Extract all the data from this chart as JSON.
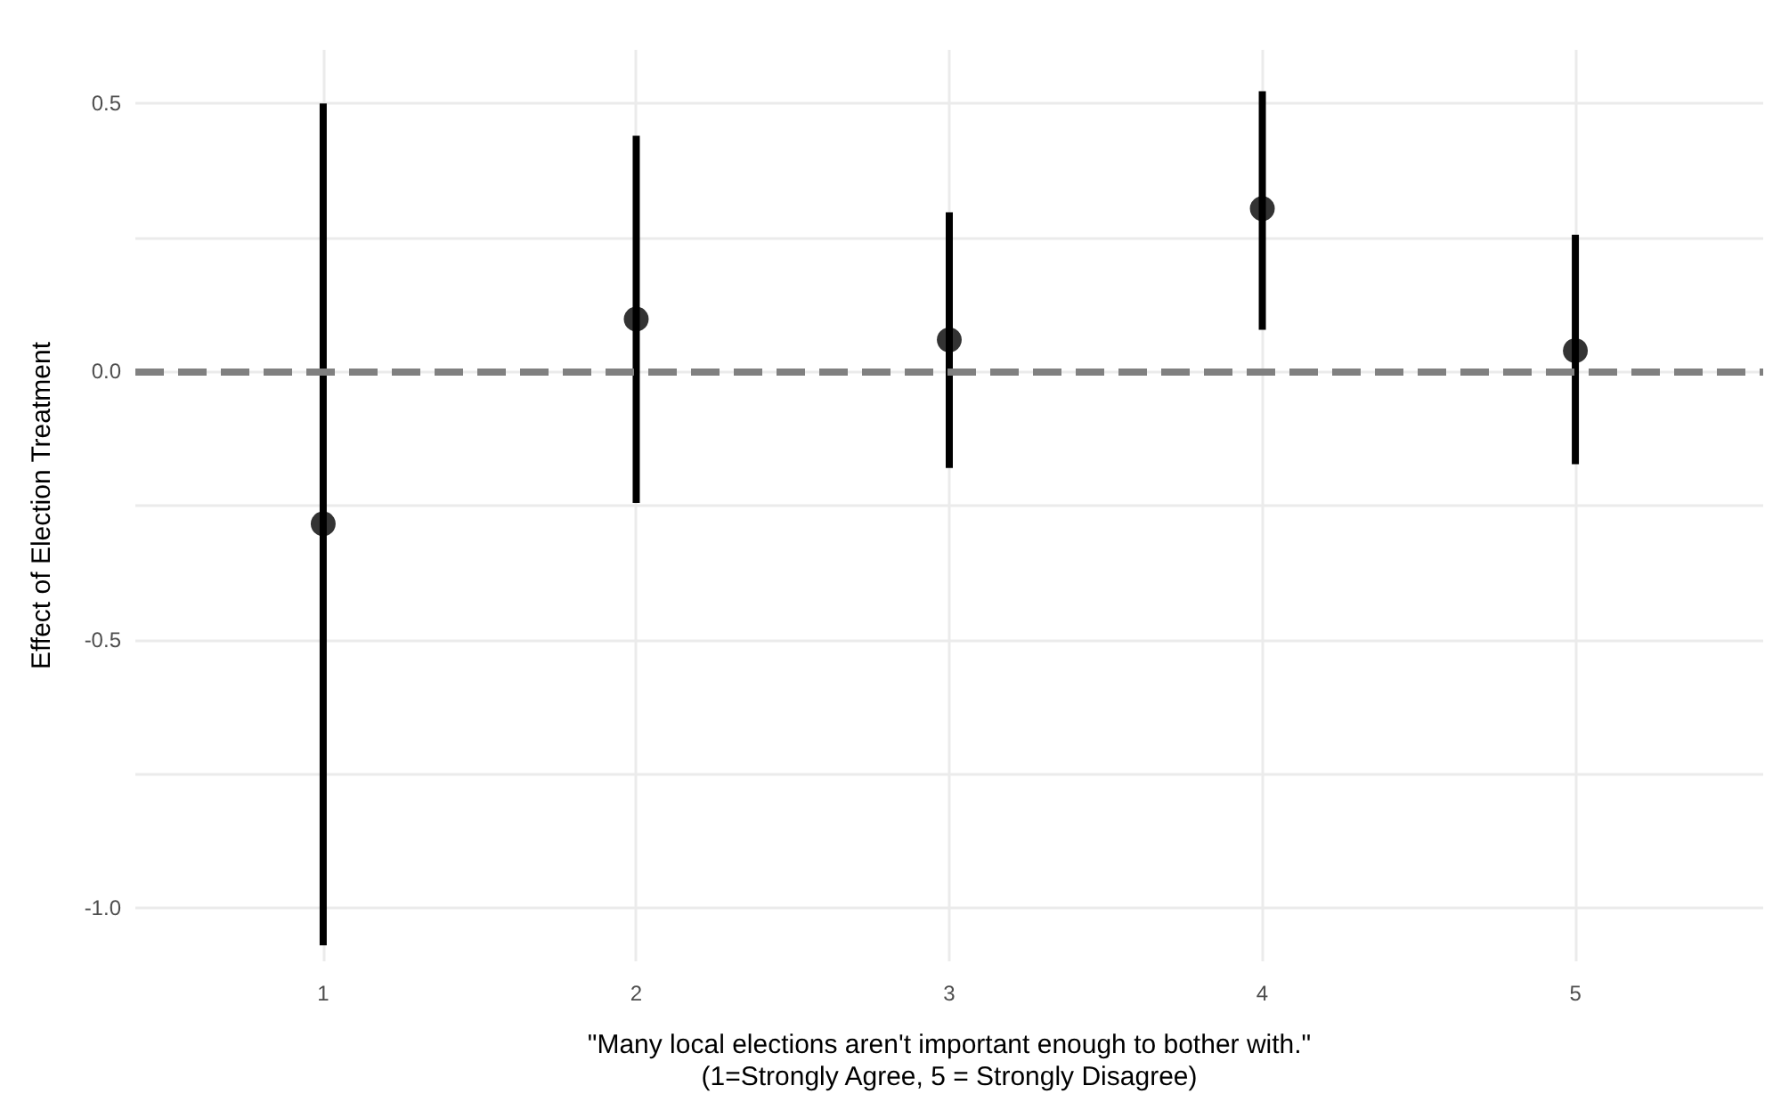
{
  "chart_data": {
    "type": "scatter",
    "xlabel": "\"Many local elections aren't important enough to bother with.\"\n(1=Strongly Agree, 5 = Strongly Disagree)",
    "ylabel": "Effect of Election Treatment",
    "x": [
      1,
      2,
      3,
      4,
      5
    ],
    "values": [
      -0.284,
      0.098,
      0.059,
      0.304,
      0.039
    ],
    "errors": [
      [
        -1.07,
        0.5
      ],
      [
        -0.245,
        0.44
      ],
      [
        -0.18,
        0.297
      ],
      [
        0.078,
        0.523
      ],
      [
        -0.173,
        0.255
      ]
    ],
    "color": "#000000",
    "marker": "circle",
    "xlim": [
      0.4,
      5.6
    ],
    "xticks": [
      1,
      2,
      3,
      4,
      5
    ],
    "ylim": [
      -1.1,
      0.6
    ],
    "yticks": [
      {
        "value": -1.0,
        "label": "-1.0"
      },
      {
        "value": -0.75,
        "label": null
      },
      {
        "value": -0.5,
        "label": "-0.5"
      },
      {
        "value": -0.25,
        "label": null
      },
      {
        "value": 0,
        "label": "0.0"
      },
      {
        "value": 0.25,
        "label": null
      },
      {
        "value": 0.5,
        "label": "0.5"
      }
    ],
    "ref_lines": [
      {
        "axis": "y",
        "value": 0,
        "color": "#808080",
        "line_style": "dashed"
      }
    ],
    "grid": true
  }
}
